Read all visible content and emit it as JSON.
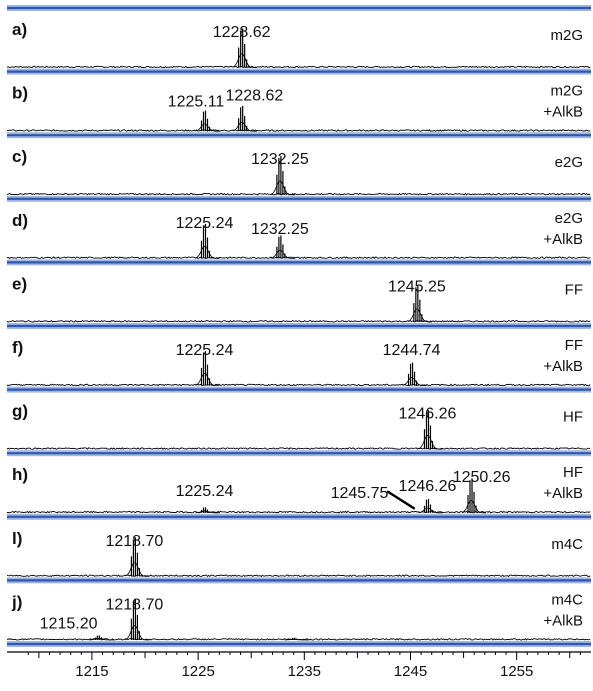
{
  "chart_data": {
    "type": "line",
    "xlabel": "",
    "ylabel": "",
    "xlim": [
      1207,
      1262
    ],
    "x_ticks": [
      1215,
      1225,
      1235,
      1245,
      1255
    ],
    "colors": {
      "separator": "#2f57b0",
      "separator_light": "#9fb6e2",
      "spectrum": "#000000"
    },
    "panels": [
      {
        "id": "a)",
        "sample": [
          "m2G"
        ],
        "peaks": [
          {
            "mz": 1229.1,
            "height": 0.85
          }
        ],
        "labels": [
          {
            "text": "1228.62",
            "x": 1229.1
          }
        ]
      },
      {
        "id": "b)",
        "sample": [
          "m2G",
          "+AlkB"
        ],
        "peaks": [
          {
            "mz": 1225.6,
            "height": 0.45
          },
          {
            "mz": 1229.1,
            "height": 0.55
          }
        ],
        "labels": [
          {
            "text": "1225.11",
            "x": 1224.8
          },
          {
            "text": "1228.62",
            "x": 1230.3
          }
        ]
      },
      {
        "id": "c)",
        "sample": [
          "e2G"
        ],
        "peaks": [
          {
            "mz": 1232.7,
            "height": 0.85
          }
        ],
        "labels": [
          {
            "text": "1232.25",
            "x": 1232.7
          }
        ]
      },
      {
        "id": "d)",
        "sample": [
          "e2G",
          "+AlkB"
        ],
        "peaks": [
          {
            "mz": 1225.6,
            "height": 0.75
          },
          {
            "mz": 1232.7,
            "height": 0.5
          }
        ],
        "labels": [
          {
            "text": "1225.24",
            "x": 1225.6
          },
          {
            "text": "1232.25",
            "x": 1232.7
          }
        ]
      },
      {
        "id": "e)",
        "sample": [
          "FF"
        ],
        "peaks": [
          {
            "mz": 1245.6,
            "height": 0.8
          }
        ],
        "labels": [
          {
            "text": "1245.25",
            "x": 1245.6
          }
        ]
      },
      {
        "id": "f)",
        "sample": [
          "FF",
          "+AlkB"
        ],
        "peaks": [
          {
            "mz": 1225.6,
            "height": 0.75
          },
          {
            "mz": 1245.1,
            "height": 0.5
          }
        ],
        "labels": [
          {
            "text": "1225.24",
            "x": 1225.6
          },
          {
            "text": "1244.74",
            "x": 1245.1
          }
        ]
      },
      {
        "id": "g)",
        "sample": [
          "HF"
        ],
        "peaks": [
          {
            "mz": 1246.6,
            "height": 0.85
          }
        ],
        "labels": [
          {
            "text": "1246.26",
            "x": 1246.6
          }
        ]
      },
      {
        "id": "h)",
        "sample": [
          "HF",
          "+AlkB"
        ],
        "peaks": [
          {
            "mz": 1225.6,
            "height": 0.12
          },
          {
            "mz": 1246.6,
            "height": 0.3
          },
          {
            "mz": 1250.7,
            "height": 0.75
          }
        ],
        "labels": [
          {
            "text": "1225.24",
            "x": 1225.6
          },
          {
            "text": "1245.75",
            "x": 1240.2
          },
          {
            "text": "1246.26",
            "x": 1246.6
          },
          {
            "text": "1250.26",
            "x": 1251.7
          }
        ],
        "arrow": {
          "from": 1242.8,
          "to": 1245.4
        }
      },
      {
        "id": "l)",
        "sample": [
          "m4C"
        ],
        "peaks": [
          {
            "mz": 1219.0,
            "height": 0.85
          }
        ],
        "labels": [
          {
            "text": "1218.70",
            "x": 1219.0
          }
        ]
      },
      {
        "id": "j)",
        "sample": [
          "m4C",
          "+AlkB"
        ],
        "peaks": [
          {
            "mz": 1215.6,
            "height": 0.1
          },
          {
            "mz": 1219.0,
            "height": 0.9
          },
          {
            "mz": 1234.0,
            "height": 0.05
          }
        ],
        "labels": [
          {
            "text": "1215.20",
            "x": 1212.8
          },
          {
            "text": "1218.70",
            "x": 1219.0
          }
        ]
      }
    ]
  }
}
